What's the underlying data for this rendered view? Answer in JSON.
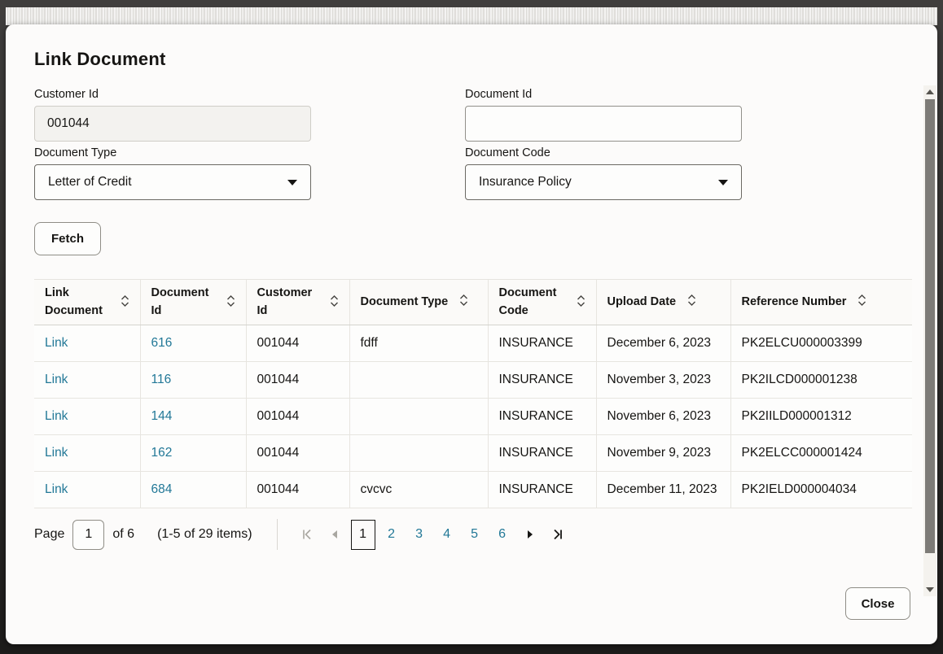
{
  "dialog": {
    "title": "Link Document",
    "close_label": "Close"
  },
  "form": {
    "customer_id": {
      "label": "Customer Id",
      "value": "001044"
    },
    "document_id": {
      "label": "Document Id",
      "value": ""
    },
    "document_type": {
      "label": "Document Type",
      "value": "Letter of Credit"
    },
    "document_code": {
      "label": "Document Code",
      "value": "Insurance Policy"
    },
    "fetch_label": "Fetch"
  },
  "table": {
    "columns": [
      "Link Document",
      "Document Id",
      "Customer Id",
      "Document Type",
      "Document Code",
      "Upload Date",
      "Reference Number"
    ],
    "rows": [
      {
        "link": "Link",
        "document_id": "616",
        "customer_id": "001044",
        "document_type": "fdff",
        "document_code": "INSURANCE",
        "upload_date": "December 6, 2023",
        "reference_number": "PK2ELCU000003399"
      },
      {
        "link": "Link",
        "document_id": "116",
        "customer_id": "001044",
        "document_type": "",
        "document_code": "INSURANCE",
        "upload_date": "November 3, 2023",
        "reference_number": "PK2ILCD000001238"
      },
      {
        "link": "Link",
        "document_id": "144",
        "customer_id": "001044",
        "document_type": "",
        "document_code": "INSURANCE",
        "upload_date": "November 6, 2023",
        "reference_number": "PK2IILD000001312"
      },
      {
        "link": "Link",
        "document_id": "162",
        "customer_id": "001044",
        "document_type": "",
        "document_code": "INSURANCE",
        "upload_date": "November 9, 2023",
        "reference_number": "PK2ELCC000001424"
      },
      {
        "link": "Link",
        "document_id": "684",
        "customer_id": "001044",
        "document_type": "cvcvc",
        "document_code": "INSURANCE",
        "upload_date": "December 11, 2023",
        "reference_number": "PK2IELD000004034"
      }
    ]
  },
  "pagination": {
    "page_label": "Page",
    "current_page": "1",
    "of_label": "of 6",
    "items_label": "(1-5 of 29 items)",
    "pages": [
      "1",
      "2",
      "3",
      "4",
      "5",
      "6"
    ],
    "current": "1"
  },
  "colors": {
    "link": "#227897",
    "text": "#161513",
    "modal_bg": "#fcfbfa"
  }
}
